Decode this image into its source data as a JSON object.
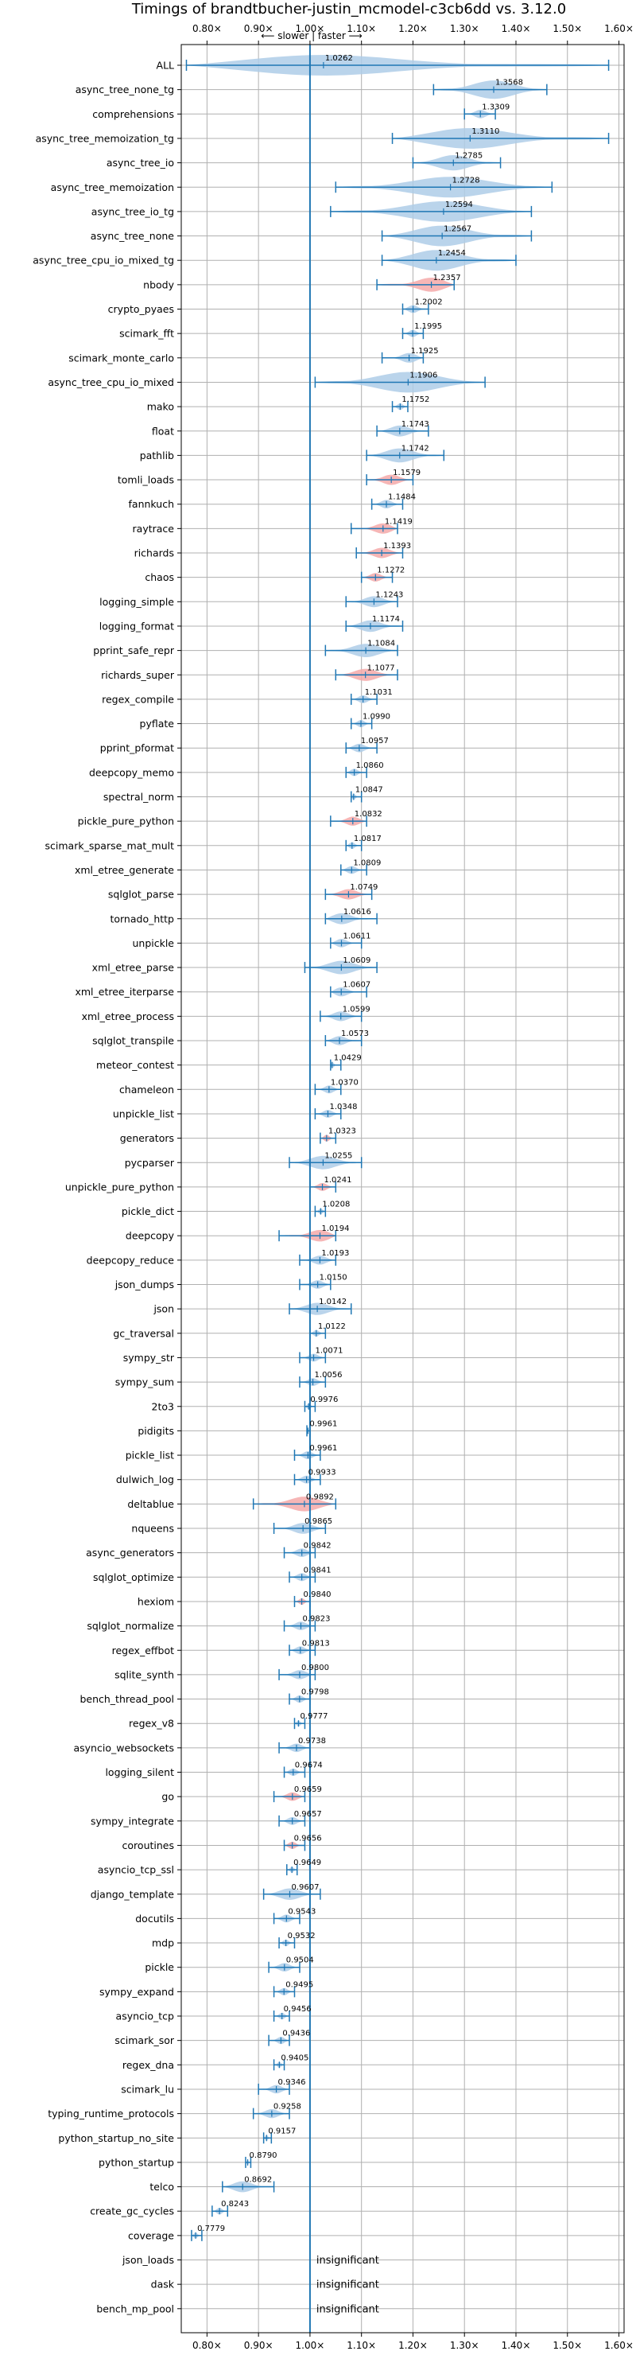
{
  "chart_data": {
    "type": "violin",
    "title": "Timings of brandtbucher-justin_mcmodel-c3cb6dd vs. 3.12.0",
    "subtitle": "⟵ slower | faster ⟶",
    "x_ticks": [
      "0.80×",
      "0.90×",
      "1.00×",
      "1.10×",
      "1.20×",
      "1.30×",
      "1.40×",
      "1.50×",
      "1.60×"
    ],
    "xlim": [
      0.75,
      1.61
    ],
    "grid": true,
    "colors": {
      "faster": "#aecde8",
      "slower": "#f4a9a9",
      "line": "#1f77b4"
    },
    "benchmarks": [
      {
        "name": "ALL",
        "value": 1.0262,
        "label": "1.0262",
        "min": 0.76,
        "max": 1.58,
        "color": "blue"
      },
      {
        "name": "async_tree_none_tg",
        "value": 1.3568,
        "label": "1.3568",
        "min": 1.24,
        "max": 1.46,
        "color": "blue"
      },
      {
        "name": "comprehensions",
        "value": 1.3309,
        "label": "1.3309",
        "min": 1.3,
        "max": 1.36,
        "color": "blue"
      },
      {
        "name": "async_tree_memoization_tg",
        "value": 1.311,
        "label": "1.3110",
        "min": 1.16,
        "max": 1.58,
        "color": "blue"
      },
      {
        "name": "async_tree_io",
        "value": 1.2785,
        "label": "1.2785",
        "min": 1.2,
        "max": 1.37,
        "color": "blue"
      },
      {
        "name": "async_tree_memoization",
        "value": 1.2728,
        "label": "1.2728",
        "min": 1.05,
        "max": 1.47,
        "color": "blue"
      },
      {
        "name": "async_tree_io_tg",
        "value": 1.2594,
        "label": "1.2594",
        "min": 1.04,
        "max": 1.43,
        "color": "blue"
      },
      {
        "name": "async_tree_none",
        "value": 1.2567,
        "label": "1.2567",
        "min": 1.14,
        "max": 1.43,
        "color": "blue"
      },
      {
        "name": "async_tree_cpu_io_mixed_tg",
        "value": 1.2454,
        "label": "1.2454",
        "min": 1.14,
        "max": 1.4,
        "color": "blue"
      },
      {
        "name": "nbody",
        "value": 1.2357,
        "label": "1.2357",
        "min": 1.13,
        "max": 1.28,
        "color": "red"
      },
      {
        "name": "crypto_pyaes",
        "value": 1.2002,
        "label": "1.2002",
        "min": 1.18,
        "max": 1.23,
        "color": "blue"
      },
      {
        "name": "scimark_fft",
        "value": 1.1995,
        "label": "1.1995",
        "min": 1.18,
        "max": 1.22,
        "color": "blue"
      },
      {
        "name": "scimark_monte_carlo",
        "value": 1.1925,
        "label": "1.1925",
        "min": 1.14,
        "max": 1.22,
        "color": "blue"
      },
      {
        "name": "async_tree_cpu_io_mixed",
        "value": 1.1906,
        "label": "1.1906",
        "min": 1.01,
        "max": 1.34,
        "color": "blue"
      },
      {
        "name": "mako",
        "value": 1.1752,
        "label": "1.1752",
        "min": 1.16,
        "max": 1.19,
        "color": "blue"
      },
      {
        "name": "float",
        "value": 1.1743,
        "label": "1.1743",
        "min": 1.13,
        "max": 1.23,
        "color": "blue"
      },
      {
        "name": "pathlib",
        "value": 1.1742,
        "label": "1.1742",
        "min": 1.11,
        "max": 1.26,
        "color": "blue"
      },
      {
        "name": "tomli_loads",
        "value": 1.1579,
        "label": "1.1579",
        "min": 1.11,
        "max": 1.2,
        "color": "red"
      },
      {
        "name": "fannkuch",
        "value": 1.1484,
        "label": "1.1484",
        "min": 1.12,
        "max": 1.18,
        "color": "blue"
      },
      {
        "name": "raytrace",
        "value": 1.1419,
        "label": "1.1419",
        "min": 1.08,
        "max": 1.17,
        "color": "red"
      },
      {
        "name": "richards",
        "value": 1.1393,
        "label": "1.1393",
        "min": 1.09,
        "max": 1.18,
        "color": "red"
      },
      {
        "name": "chaos",
        "value": 1.1272,
        "label": "1.1272",
        "min": 1.1,
        "max": 1.16,
        "color": "red"
      },
      {
        "name": "logging_simple",
        "value": 1.1243,
        "label": "1.1243",
        "min": 1.07,
        "max": 1.17,
        "color": "blue"
      },
      {
        "name": "logging_format",
        "value": 1.1174,
        "label": "1.1174",
        "min": 1.07,
        "max": 1.18,
        "color": "blue"
      },
      {
        "name": "pprint_safe_repr",
        "value": 1.1084,
        "label": "1.1084",
        "min": 1.03,
        "max": 1.17,
        "color": "blue"
      },
      {
        "name": "richards_super",
        "value": 1.1077,
        "label": "1.1077",
        "min": 1.05,
        "max": 1.17,
        "color": "red"
      },
      {
        "name": "regex_compile",
        "value": 1.1031,
        "label": "1.1031",
        "min": 1.08,
        "max": 1.13,
        "color": "blue"
      },
      {
        "name": "pyflate",
        "value": 1.099,
        "label": "1.0990",
        "min": 1.08,
        "max": 1.12,
        "color": "blue"
      },
      {
        "name": "pprint_pformat",
        "value": 1.0957,
        "label": "1.0957",
        "min": 1.07,
        "max": 1.13,
        "color": "blue"
      },
      {
        "name": "deepcopy_memo",
        "value": 1.086,
        "label": "1.0860",
        "min": 1.07,
        "max": 1.11,
        "color": "blue"
      },
      {
        "name": "spectral_norm",
        "value": 1.0847,
        "label": "1.0847",
        "min": 1.08,
        "max": 1.1,
        "color": "blue"
      },
      {
        "name": "pickle_pure_python",
        "value": 1.0832,
        "label": "1.0832",
        "min": 1.04,
        "max": 1.11,
        "color": "red"
      },
      {
        "name": "scimark_sparse_mat_mult",
        "value": 1.0817,
        "label": "1.0817",
        "min": 1.07,
        "max": 1.1,
        "color": "blue"
      },
      {
        "name": "xml_etree_generate",
        "value": 1.0809,
        "label": "1.0809",
        "min": 1.06,
        "max": 1.11,
        "color": "blue"
      },
      {
        "name": "sqlglot_parse",
        "value": 1.0749,
        "label": "1.0749",
        "min": 1.03,
        "max": 1.12,
        "color": "red"
      },
      {
        "name": "tornado_http",
        "value": 1.0616,
        "label": "1.0616",
        "min": 1.03,
        "max": 1.13,
        "color": "blue"
      },
      {
        "name": "unpickle",
        "value": 1.0611,
        "label": "1.0611",
        "min": 1.04,
        "max": 1.1,
        "color": "blue"
      },
      {
        "name": "xml_etree_parse",
        "value": 1.0609,
        "label": "1.0609",
        "min": 0.99,
        "max": 1.13,
        "color": "blue"
      },
      {
        "name": "xml_etree_iterparse",
        "value": 1.0607,
        "label": "1.0607",
        "min": 1.04,
        "max": 1.11,
        "color": "blue"
      },
      {
        "name": "xml_etree_process",
        "value": 1.0599,
        "label": "1.0599",
        "min": 1.02,
        "max": 1.1,
        "color": "blue"
      },
      {
        "name": "sqlglot_transpile",
        "value": 1.0573,
        "label": "1.0573",
        "min": 1.03,
        "max": 1.1,
        "color": "blue"
      },
      {
        "name": "meteor_contest",
        "value": 1.0429,
        "label": "1.0429",
        "min": 1.04,
        "max": 1.06,
        "color": "blue"
      },
      {
        "name": "chameleon",
        "value": 1.037,
        "label": "1.0370",
        "min": 1.01,
        "max": 1.06,
        "color": "blue"
      },
      {
        "name": "unpickle_list",
        "value": 1.0348,
        "label": "1.0348",
        "min": 1.01,
        "max": 1.06,
        "color": "blue"
      },
      {
        "name": "generators",
        "value": 1.0323,
        "label": "1.0323",
        "min": 1.02,
        "max": 1.05,
        "color": "red"
      },
      {
        "name": "pycparser",
        "value": 1.0255,
        "label": "1.0255",
        "min": 0.96,
        "max": 1.1,
        "color": "blue"
      },
      {
        "name": "unpickle_pure_python",
        "value": 1.0241,
        "label": "1.0241",
        "min": 1.0,
        "max": 1.05,
        "color": "red"
      },
      {
        "name": "pickle_dict",
        "value": 1.0208,
        "label": "1.0208",
        "min": 1.01,
        "max": 1.03,
        "color": "blue"
      },
      {
        "name": "deepcopy",
        "value": 1.0194,
        "label": "1.0194",
        "min": 0.94,
        "max": 1.05,
        "color": "red"
      },
      {
        "name": "deepcopy_reduce",
        "value": 1.0193,
        "label": "1.0193",
        "min": 0.98,
        "max": 1.05,
        "color": "blue"
      },
      {
        "name": "json_dumps",
        "value": 1.015,
        "label": "1.0150",
        "min": 0.98,
        "max": 1.04,
        "color": "blue"
      },
      {
        "name": "json",
        "value": 1.0142,
        "label": "1.0142",
        "min": 0.96,
        "max": 1.08,
        "color": "blue"
      },
      {
        "name": "gc_traversal",
        "value": 1.0122,
        "label": "1.0122",
        "min": 1.0,
        "max": 1.03,
        "color": "blue"
      },
      {
        "name": "sympy_str",
        "value": 1.0071,
        "label": "1.0071",
        "min": 0.98,
        "max": 1.03,
        "color": "blue"
      },
      {
        "name": "sympy_sum",
        "value": 1.0056,
        "label": "1.0056",
        "min": 0.98,
        "max": 1.03,
        "color": "blue"
      },
      {
        "name": "2to3",
        "value": 0.9976,
        "label": "0.9976",
        "min": 0.99,
        "max": 1.01,
        "color": "blue"
      },
      {
        "name": "pidigits",
        "value": 0.9961,
        "label": "0.9961",
        "min": 0.994,
        "max": 1.0,
        "color": "blue"
      },
      {
        "name": "pickle_list",
        "value": 0.9961,
        "label": "0.9961",
        "min": 0.97,
        "max": 1.02,
        "color": "blue"
      },
      {
        "name": "dulwich_log",
        "value": 0.9933,
        "label": "0.9933",
        "min": 0.97,
        "max": 1.02,
        "color": "blue"
      },
      {
        "name": "deltablue",
        "value": 0.9892,
        "label": "0.9892",
        "min": 0.89,
        "max": 1.05,
        "color": "red"
      },
      {
        "name": "nqueens",
        "value": 0.9865,
        "label": "0.9865",
        "min": 0.93,
        "max": 1.03,
        "color": "blue"
      },
      {
        "name": "async_generators",
        "value": 0.9842,
        "label": "0.9842",
        "min": 0.95,
        "max": 1.01,
        "color": "blue"
      },
      {
        "name": "sqlglot_optimize",
        "value": 0.9841,
        "label": "0.9841",
        "min": 0.96,
        "max": 1.01,
        "color": "blue"
      },
      {
        "name": "hexiom",
        "value": 0.984,
        "label": "0.9840",
        "min": 0.97,
        "max": 1.0,
        "color": "red"
      },
      {
        "name": "sqlglot_normalize",
        "value": 0.9823,
        "label": "0.9823",
        "min": 0.95,
        "max": 1.01,
        "color": "blue"
      },
      {
        "name": "regex_effbot",
        "value": 0.9813,
        "label": "0.9813",
        "min": 0.96,
        "max": 1.01,
        "color": "blue"
      },
      {
        "name": "sqlite_synth",
        "value": 0.98,
        "label": "0.9800",
        "min": 0.94,
        "max": 1.01,
        "color": "blue"
      },
      {
        "name": "bench_thread_pool",
        "value": 0.9798,
        "label": "0.9798",
        "min": 0.96,
        "max": 1.0,
        "color": "blue"
      },
      {
        "name": "regex_v8",
        "value": 0.9777,
        "label": "0.9777",
        "min": 0.97,
        "max": 0.99,
        "color": "blue"
      },
      {
        "name": "asyncio_websockets",
        "value": 0.9738,
        "label": "0.9738",
        "min": 0.94,
        "max": 1.0,
        "color": "blue"
      },
      {
        "name": "logging_silent",
        "value": 0.9674,
        "label": "0.9674",
        "min": 0.95,
        "max": 0.99,
        "color": "blue"
      },
      {
        "name": "go",
        "value": 0.9659,
        "label": "0.9659",
        "min": 0.93,
        "max": 0.99,
        "color": "red"
      },
      {
        "name": "sympy_integrate",
        "value": 0.9657,
        "label": "0.9657",
        "min": 0.94,
        "max": 0.99,
        "color": "blue"
      },
      {
        "name": "coroutines",
        "value": 0.9656,
        "label": "0.9656",
        "min": 0.95,
        "max": 0.99,
        "color": "red"
      },
      {
        "name": "asyncio_tcp_ssl",
        "value": 0.9649,
        "label": "0.9649",
        "min": 0.955,
        "max": 0.975,
        "color": "blue"
      },
      {
        "name": "django_template",
        "value": 0.9607,
        "label": "0.9607",
        "min": 0.91,
        "max": 1.02,
        "color": "blue"
      },
      {
        "name": "docutils",
        "value": 0.9543,
        "label": "0.9543",
        "min": 0.93,
        "max": 0.98,
        "color": "blue"
      },
      {
        "name": "mdp",
        "value": 0.9532,
        "label": "0.9532",
        "min": 0.94,
        "max": 0.97,
        "color": "blue"
      },
      {
        "name": "pickle",
        "value": 0.9504,
        "label": "0.9504",
        "min": 0.92,
        "max": 0.98,
        "color": "blue"
      },
      {
        "name": "sympy_expand",
        "value": 0.9495,
        "label": "0.9495",
        "min": 0.93,
        "max": 0.97,
        "color": "blue"
      },
      {
        "name": "asyncio_tcp",
        "value": 0.9456,
        "label": "0.9456",
        "min": 0.93,
        "max": 0.96,
        "color": "blue"
      },
      {
        "name": "scimark_sor",
        "value": 0.9436,
        "label": "0.9436",
        "min": 0.92,
        "max": 0.96,
        "color": "blue"
      },
      {
        "name": "regex_dna",
        "value": 0.9405,
        "label": "0.9405",
        "min": 0.93,
        "max": 0.95,
        "color": "blue"
      },
      {
        "name": "scimark_lu",
        "value": 0.9346,
        "label": "0.9346",
        "min": 0.9,
        "max": 0.96,
        "color": "blue"
      },
      {
        "name": "typing_runtime_protocols",
        "value": 0.9258,
        "label": "0.9258",
        "min": 0.89,
        "max": 0.96,
        "color": "blue"
      },
      {
        "name": "python_startup_no_site",
        "value": 0.9157,
        "label": "0.9157",
        "min": 0.91,
        "max": 0.925,
        "color": "blue"
      },
      {
        "name": "python_startup",
        "value": 0.879,
        "label": "0.8790",
        "min": 0.875,
        "max": 0.885,
        "color": "blue"
      },
      {
        "name": "telco",
        "value": 0.8692,
        "label": "0.8692",
        "min": 0.83,
        "max": 0.93,
        "color": "blue"
      },
      {
        "name": "create_gc_cycles",
        "value": 0.8243,
        "label": "0.8243",
        "min": 0.81,
        "max": 0.84,
        "color": "blue"
      },
      {
        "name": "coverage",
        "value": 0.7779,
        "label": "0.7779",
        "min": 0.77,
        "max": 0.79,
        "color": "blue"
      },
      {
        "name": "json_loads",
        "label": "insignificant",
        "insignificant": true
      },
      {
        "name": "dask",
        "label": "insignificant",
        "insignificant": true
      },
      {
        "name": "bench_mp_pool",
        "label": "insignificant",
        "insignificant": true
      }
    ]
  }
}
